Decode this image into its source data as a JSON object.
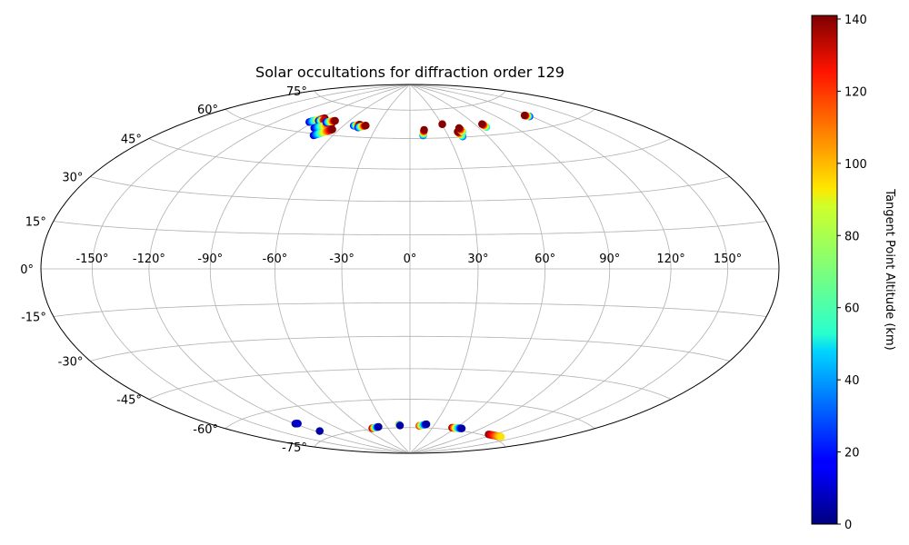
{
  "chart_data": {
    "type": "scatter",
    "projection": "hammer",
    "title": "Solar occultations for diffraction order 129",
    "longitude_tick_labels": [
      "-150°",
      "-120°",
      "-90°",
      "-60°",
      "-30°",
      "0°",
      "30°",
      "60°",
      "90°",
      "120°",
      "150°"
    ],
    "longitude_ticks": [
      -150,
      -120,
      -90,
      -60,
      -30,
      0,
      30,
      60,
      90,
      120,
      150
    ],
    "latitude_tick_labels": [
      "75°",
      "60°",
      "45°",
      "30°",
      "15°",
      "0°",
      "-15°",
      "-30°",
      "-45°",
      "-60°",
      "-75°"
    ],
    "latitude_ticks": [
      75,
      60,
      45,
      30,
      15,
      0,
      -15,
      -30,
      -45,
      -60,
      -75
    ],
    "grid": true,
    "colorbar": {
      "label": "Tangent Point Altitude (km)",
      "colormap": "jet",
      "range": [
        0,
        141
      ],
      "tick_labels": [
        "0",
        "20",
        "40",
        "60",
        "80",
        "100",
        "120",
        "140"
      ],
      "ticks": [
        0,
        20,
        40,
        60,
        80,
        100,
        120,
        140
      ],
      "placement": "right"
    },
    "tracks": [
      {
        "lon0": -93.5,
        "lat0": 64.8,
        "lon1": -86.0,
        "lat1": 67.5,
        "alt0": 10,
        "alt1": 140
      },
      {
        "lon0": -87.5,
        "lat0": 66.0,
        "lon1": -83.5,
        "lat1": 66.6,
        "alt0": 5,
        "alt1": 130
      },
      {
        "lon0": -81.5,
        "lat0": 62.5,
        "lon1": -72.0,
        "lat1": 65.3,
        "alt0": 5,
        "alt1": 140
      },
      {
        "lon0": -79.0,
        "lat0": 65.8,
        "lon1": -73.0,
        "lat1": 67.0,
        "alt0": 10,
        "alt1": 140
      },
      {
        "lon0": -74.5,
        "lat0": 59.2,
        "lon1": -65.5,
        "lat1": 62.8,
        "alt0": 10,
        "alt1": 140
      },
      {
        "lon0": -51.0,
        "lat0": 65.5,
        "lon1": -46.5,
        "lat1": 66.3,
        "alt0": 15,
        "alt1": 140
      },
      {
        "lon0": -46.0,
        "lat0": 64.8,
        "lon1": -40.5,
        "lat1": 66.0,
        "alt0": 15,
        "alt1": 140
      },
      {
        "lon0": 10.4,
        "lat0": 61.5,
        "lon1": 12.2,
        "lat1": 64.4,
        "alt0": 30,
        "alt1": 140
      },
      {
        "lon0": 30.5,
        "lat0": 67.0,
        "lon1": 30.5,
        "lat1": 67.0,
        "alt0": 140,
        "alt1": 140
      },
      {
        "lon0": 40.8,
        "lat0": 60.3,
        "lon1": 39.5,
        "lat1": 62.8,
        "alt0": 30,
        "alt1": 140
      },
      {
        "lon0": 43.5,
        "lat0": 62.6,
        "lon1": 43.0,
        "lat1": 64.6,
        "alt0": 60,
        "alt1": 140
      },
      {
        "lon0": 67.0,
        "lat0": 64.0,
        "lon1": 66.5,
        "lat1": 65.6,
        "alt0": 50,
        "alt1": 140
      },
      {
        "lon0": 118.5,
        "lat0": 65.5,
        "lon1": 116.5,
        "lat1": 66.3,
        "alt0": 20,
        "alt1": 140
      },
      {
        "lon0": -119.5,
        "lat0": -66.8,
        "lon1": -117.0,
        "lat1": -67.0,
        "alt0": 5,
        "alt1": 10
      },
      {
        "lon0": -115.5,
        "lat0": -71.8,
        "lon1": -115.5,
        "lat1": -71.8,
        "alt0": 5,
        "alt1": 5
      },
      {
        "lon0": -50.5,
        "lat0": -74.5,
        "lon1": -40.5,
        "lat1": -74.0,
        "alt0": 140,
        "alt1": 5
      },
      {
        "lon0": -13.5,
        "lat0": -73.3,
        "lon1": -12.5,
        "lat1": -73.8,
        "alt0": 100,
        "alt1": 5
      },
      {
        "lon0": 12.0,
        "lat0": -74.0,
        "lon1": 20.0,
        "lat1": -73.0,
        "alt0": 120,
        "alt1": 5
      },
      {
        "lon0": 55.0,
        "lat0": -74.0,
        "lon1": 68.0,
        "lat1": -73.8,
        "alt0": 140,
        "alt1": 5
      },
      {
        "lon0": 114.0,
        "lat0": -74.2,
        "lon1": 134.0,
        "lat1": -73.6,
        "alt0": 140,
        "alt1": 92
      }
    ]
  }
}
